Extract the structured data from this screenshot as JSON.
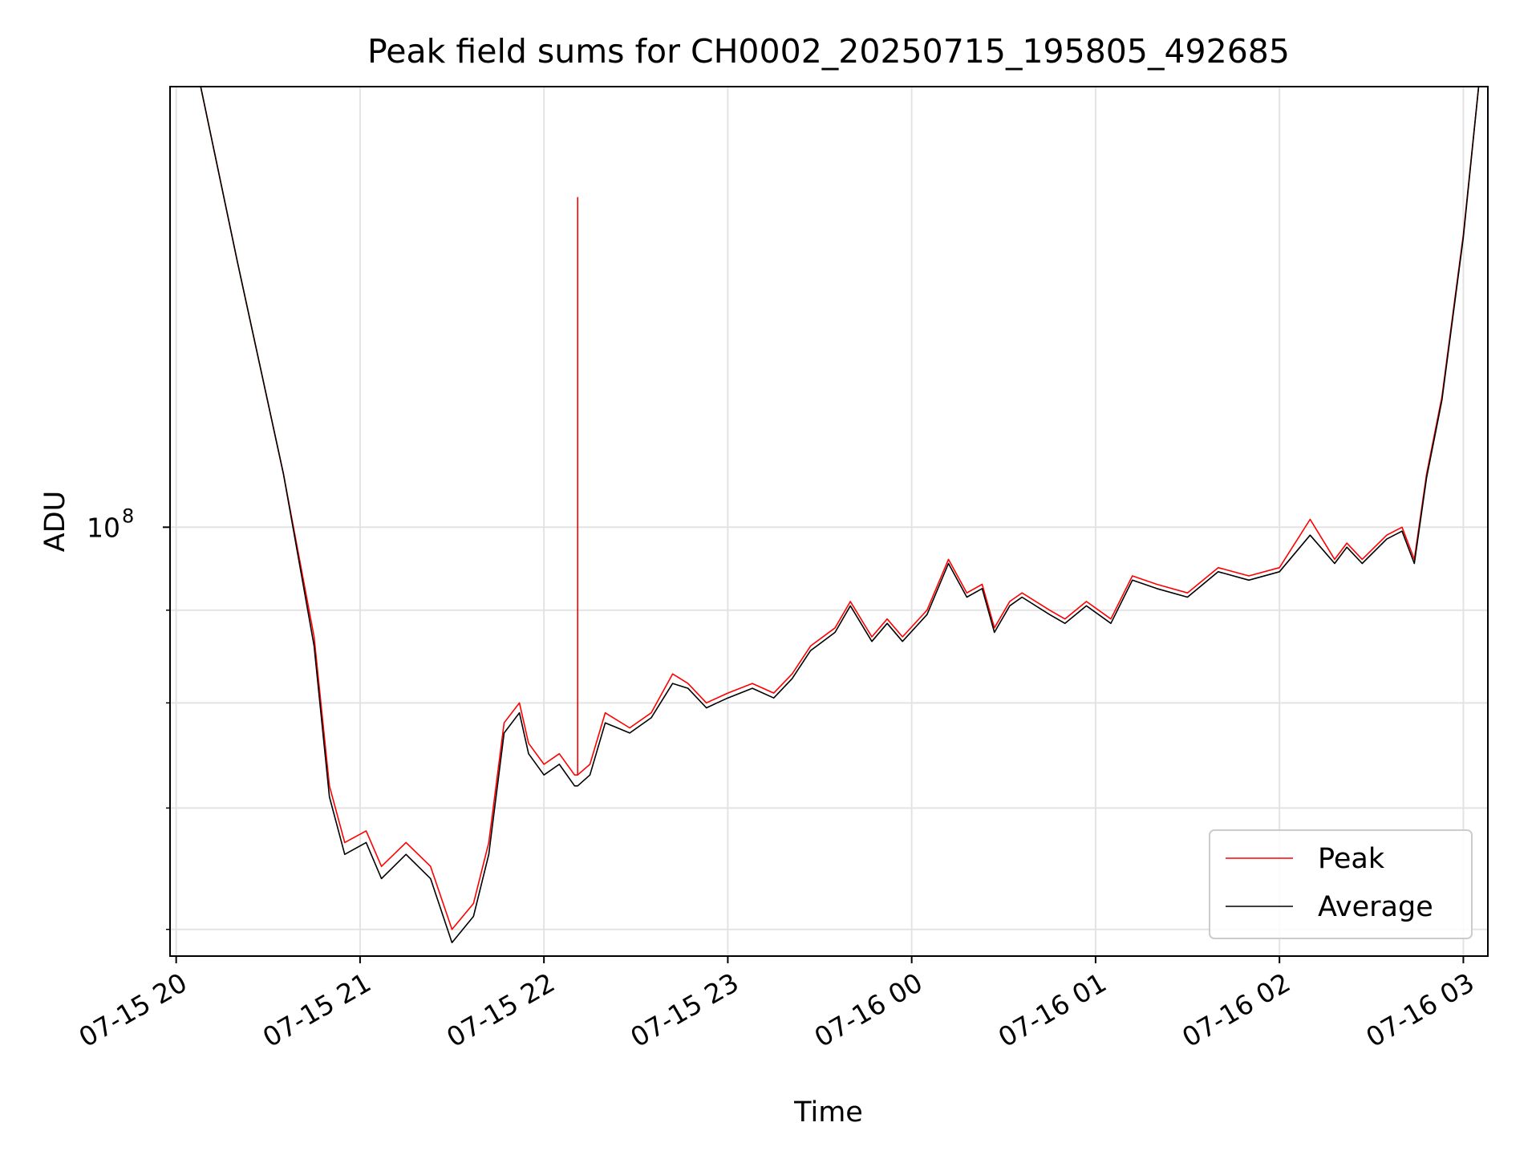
{
  "chart_data": {
    "type": "line",
    "title": "Peak field sums for CH0002_20250715_195805_492685",
    "xlabel": "Time",
    "ylabel": "ADU",
    "y_scale": "log",
    "ylim": [
      58000000,
      175000000
    ],
    "xlim": [
      "07-15 19:58",
      "07-16 03:08"
    ],
    "x_ticks": [
      "07-15 20",
      "07-15 21",
      "07-15 22",
      "07-15 23",
      "07-16 00",
      "07-16 01",
      "07-16 02",
      "07-16 03"
    ],
    "y_ticks": [
      {
        "value": 100000000,
        "label_base": "10",
        "label_exp": "8"
      }
    ],
    "grid": true,
    "legend_position": "lower-right",
    "series": [
      {
        "name": "Peak",
        "color": "#ff0000",
        "x": [
          "07-15 20:08",
          "07-15 20:20",
          "07-15 20:35",
          "07-15 20:45",
          "07-15 20:50",
          "07-15 20:55",
          "07-15 21:02",
          "07-15 21:07",
          "07-15 21:15",
          "07-15 21:23",
          "07-15 21:30",
          "07-15 21:37",
          "07-15 21:42",
          "07-15 21:47",
          "07-15 21:52",
          "07-15 21:55",
          "07-15 22:00",
          "07-15 22:05",
          "07-15 22:10",
          "07-15 22:11",
          "07-15 22:11",
          "07-15 22:11",
          "07-15 22:15",
          "07-15 22:20",
          "07-15 22:28",
          "07-15 22:35",
          "07-15 22:42",
          "07-15 22:47",
          "07-15 22:53",
          "07-15 23:00",
          "07-15 23:08",
          "07-15 23:15",
          "07-15 23:21",
          "07-15 23:27",
          "07-15 23:35",
          "07-15 23:40",
          "07-15 23:47",
          "07-15 23:52",
          "07-15 23:57",
          "07-16 00:05",
          "07-16 00:12",
          "07-16 00:18",
          "07-16 00:23",
          "07-16 00:27",
          "07-16 00:32",
          "07-16 00:36",
          "07-16 00:45",
          "07-16 00:50",
          "07-16 00:57",
          "07-16 01:05",
          "07-16 01:12",
          "07-16 01:20",
          "07-16 01:30",
          "07-16 01:40",
          "07-16 01:50",
          "07-16 02:00",
          "07-16 02:10",
          "07-16 02:18",
          "07-16 02:22",
          "07-16 02:27",
          "07-16 02:35",
          "07-16 02:40",
          "07-16 02:44",
          "07-16 02:48",
          "07-16 02:53",
          "07-16 03:00",
          "07-16 03:05"
        ],
        "y": [
          175000000,
          140000000,
          107000000,
          87000000,
          72000000,
          67000000,
          68000000,
          65000000,
          67000000,
          65000000,
          60000000,
          62000000,
          67000000,
          78000000,
          80000000,
          76000000,
          74000000,
          75000000,
          73000000,
          73000000,
          152000000,
          73000000,
          74000000,
          79000000,
          77500000,
          79000000,
          83000000,
          82000000,
          80000000,
          81000000,
          82000000,
          81000000,
          83000000,
          86000000,
          88000000,
          91000000,
          87000000,
          89000000,
          87000000,
          90000000,
          96000000,
          92000000,
          93000000,
          88000000,
          91000000,
          92000000,
          90000000,
          89000000,
          91000000,
          89000000,
          94000000,
          93000000,
          92000000,
          95000000,
          94000000,
          95000000,
          101000000,
          96000000,
          98000000,
          96000000,
          99000000,
          100000000,
          96000000,
          107000000,
          118000000,
          145000000,
          175000000
        ]
      },
      {
        "name": "Average",
        "color": "#000000",
        "x": [
          "07-15 20:08",
          "07-15 20:20",
          "07-15 20:35",
          "07-15 20:45",
          "07-15 20:50",
          "07-15 20:55",
          "07-15 21:02",
          "07-15 21:07",
          "07-15 21:15",
          "07-15 21:23",
          "07-15 21:30",
          "07-15 21:37",
          "07-15 21:42",
          "07-15 21:47",
          "07-15 21:52",
          "07-15 21:55",
          "07-15 22:00",
          "07-15 22:05",
          "07-15 22:10",
          "07-15 22:11",
          "07-15 22:15",
          "07-15 22:20",
          "07-15 22:28",
          "07-15 22:35",
          "07-15 22:42",
          "07-15 22:47",
          "07-15 22:53",
          "07-15 23:00",
          "07-15 23:08",
          "07-15 23:15",
          "07-15 23:21",
          "07-15 23:27",
          "07-15 23:35",
          "07-15 23:40",
          "07-15 23:47",
          "07-15 23:52",
          "07-15 23:57",
          "07-16 00:05",
          "07-16 00:12",
          "07-16 00:18",
          "07-16 00:23",
          "07-16 00:27",
          "07-16 00:32",
          "07-16 00:36",
          "07-16 00:45",
          "07-16 00:50",
          "07-16 00:57",
          "07-16 01:05",
          "07-16 01:12",
          "07-16 01:20",
          "07-16 01:30",
          "07-16 01:40",
          "07-16 01:50",
          "07-16 02:00",
          "07-16 02:10",
          "07-16 02:18",
          "07-16 02:22",
          "07-16 02:27",
          "07-16 02:35",
          "07-16 02:40",
          "07-16 02:44",
          "07-16 02:48",
          "07-16 02:53",
          "07-16 03:00",
          "07-16 03:05"
        ],
        "y": [
          175000000,
          140000000,
          107000000,
          86000000,
          71000000,
          66000000,
          67000000,
          64000000,
          66000000,
          64000000,
          59000000,
          61000000,
          66000000,
          77000000,
          79000000,
          75000000,
          73000000,
          74000000,
          72000000,
          72000000,
          73000000,
          78000000,
          77000000,
          78500000,
          82000000,
          81500000,
          79500000,
          80500000,
          81500000,
          80500000,
          82500000,
          85500000,
          87500000,
          90500000,
          86500000,
          88500000,
          86500000,
          89500000,
          95500000,
          91500000,
          92500000,
          87500000,
          90500000,
          91500000,
          89500000,
          88500000,
          90500000,
          88500000,
          93500000,
          92500000,
          91500000,
          94500000,
          93500000,
          94500000,
          99000000,
          95500000,
          97500000,
          95500000,
          98500000,
          99500000,
          95500000,
          106500000,
          117500000,
          144500000,
          175000000
        ]
      }
    ]
  }
}
